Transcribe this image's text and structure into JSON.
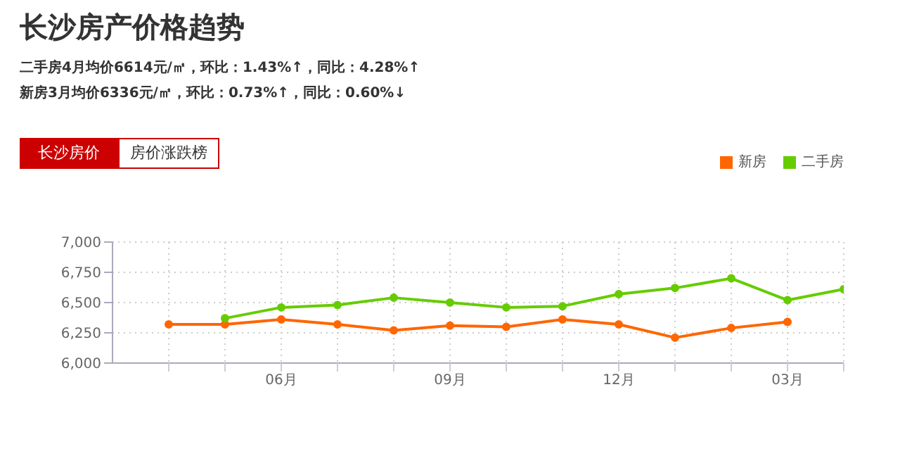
{
  "chart_data": {
    "type": "line",
    "title": "长沙房产价格趋势",
    "annotations": [
      "二手房4月均价6614元/㎡，环比：1.43%↑，同比：4.28%↑",
      "新房3月均价6336元/㎡，环比：0.73%↑，同比：0.60%↓",
      "长沙房价",
      "房价涨跌榜"
    ],
    "categories": [
      null,
      null,
      "06月",
      null,
      null,
      "09月",
      null,
      null,
      "12月",
      null,
      null,
      "03月",
      null
    ],
    "series": [
      {
        "name": "新房",
        "color": "#ff6600",
        "values": [
          6320,
          6320,
          6360,
          6320,
          6270,
          6310,
          6300,
          6360,
          6320,
          6210,
          6290,
          6340,
          null
        ]
      },
      {
        "name": "二手房",
        "color": "#66cc00",
        "values": [
          null,
          6370,
          6460,
          6480,
          6540,
          6500,
          6460,
          6470,
          6570,
          6620,
          6700,
          6520,
          6610
        ]
      }
    ],
    "ylim": [
      6000,
      7000
    ],
    "yticks": [
      {
        "value": 6000,
        "label": "6,000"
      },
      {
        "value": 6250,
        "label": "6,250"
      },
      {
        "value": 6500,
        "label": "6,500"
      },
      {
        "value": 6750,
        "label": "6,750"
      },
      {
        "value": 7000,
        "label": "7,000"
      }
    ],
    "grid": true,
    "legend": "top right",
    "marker": "circle",
    "line_style": "solid"
  }
}
